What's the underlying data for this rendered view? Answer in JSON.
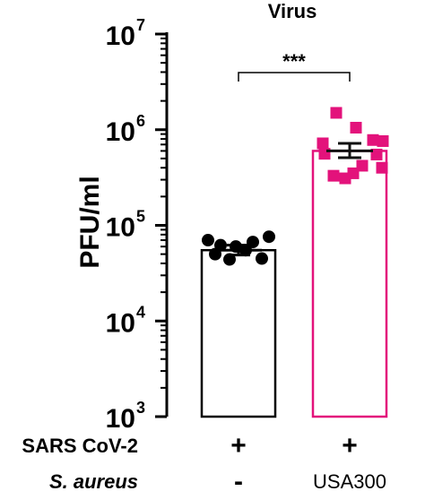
{
  "chart_data": {
    "type": "bar",
    "title": "Virus",
    "ylabel": "PFU/ml",
    "yscale": "log",
    "ylim": [
      1000,
      10000000
    ],
    "y_ticks": [
      {
        "value": 1000,
        "base": "10",
        "exp": "3"
      },
      {
        "value": 10000,
        "base": "10",
        "exp": "4"
      },
      {
        "value": 100000,
        "base": "10",
        "exp": "5"
      },
      {
        "value": 1000000,
        "base": "10",
        "exp": "6"
      },
      {
        "value": 10000000,
        "base": "10",
        "exp": "7"
      }
    ],
    "row_labels": [
      {
        "label": "SARS CoV-2",
        "italic": false,
        "values": [
          "+",
          "+"
        ]
      },
      {
        "label": "S. aureus",
        "italic": true,
        "values": [
          "-",
          "USA300"
        ]
      }
    ],
    "significance": "***",
    "series": [
      {
        "color": "#000000",
        "bar_fill": "#ffffff",
        "marker": "circle",
        "mean": 55000,
        "error": [
          49000,
          62000
        ],
        "points": [
          70000,
          62000,
          60000,
          67000,
          76000,
          50000,
          44000,
          55000,
          45000
        ]
      },
      {
        "color": "#e3127b",
        "bar_fill": "#ffffff",
        "marker": "square",
        "mean": 600000,
        "error": [
          510000,
          720000
        ],
        "points": [
          1500000,
          1050000,
          780000,
          720000,
          760000,
          560000,
          420000,
          330000,
          400000,
          350000,
          310000,
          550000
        ]
      }
    ]
  }
}
